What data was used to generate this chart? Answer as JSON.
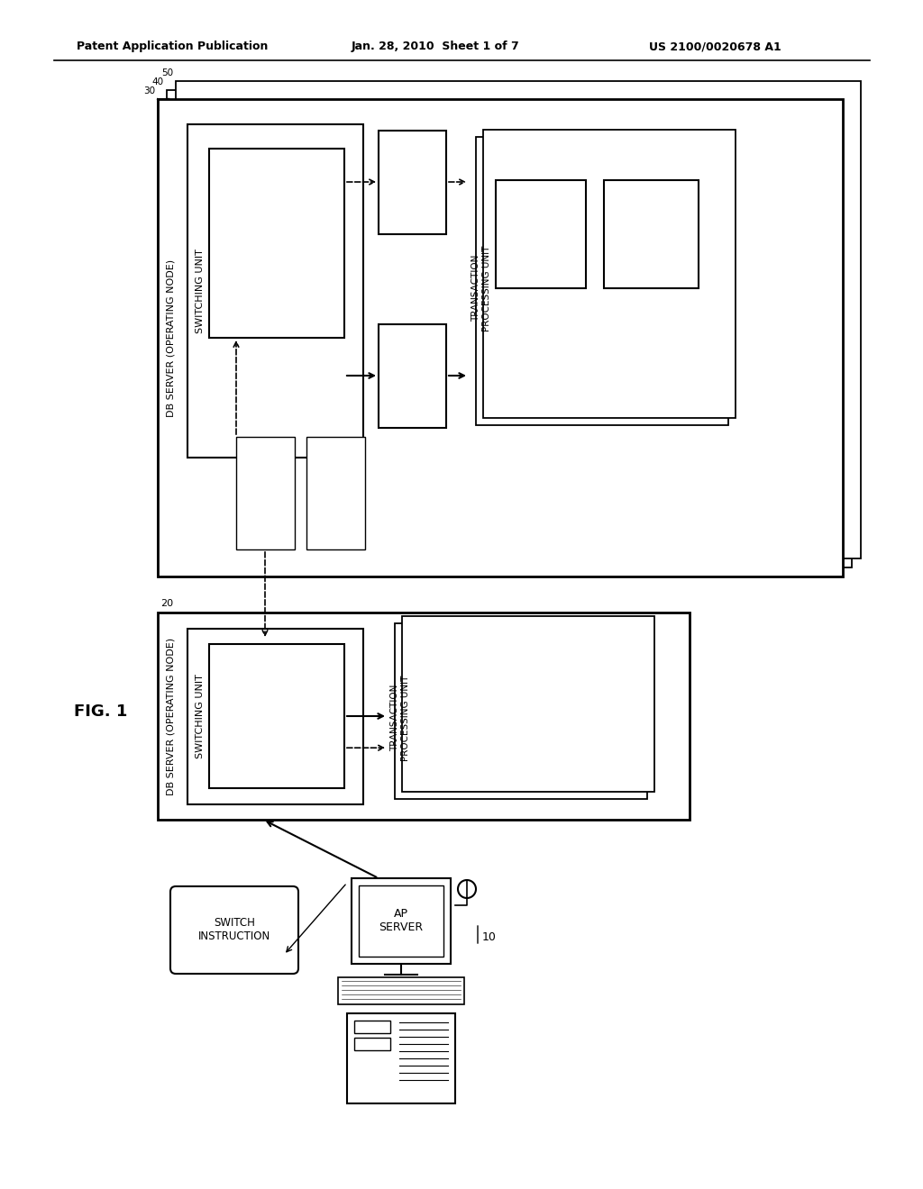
{
  "header_left": "Patent Application Publication",
  "header_mid": "Jan. 28, 2010  Sheet 1 of 7",
  "header_right": "US 2100/0020678 A1",
  "fig_label": "FIG. 1",
  "bg_color": "#ffffff"
}
